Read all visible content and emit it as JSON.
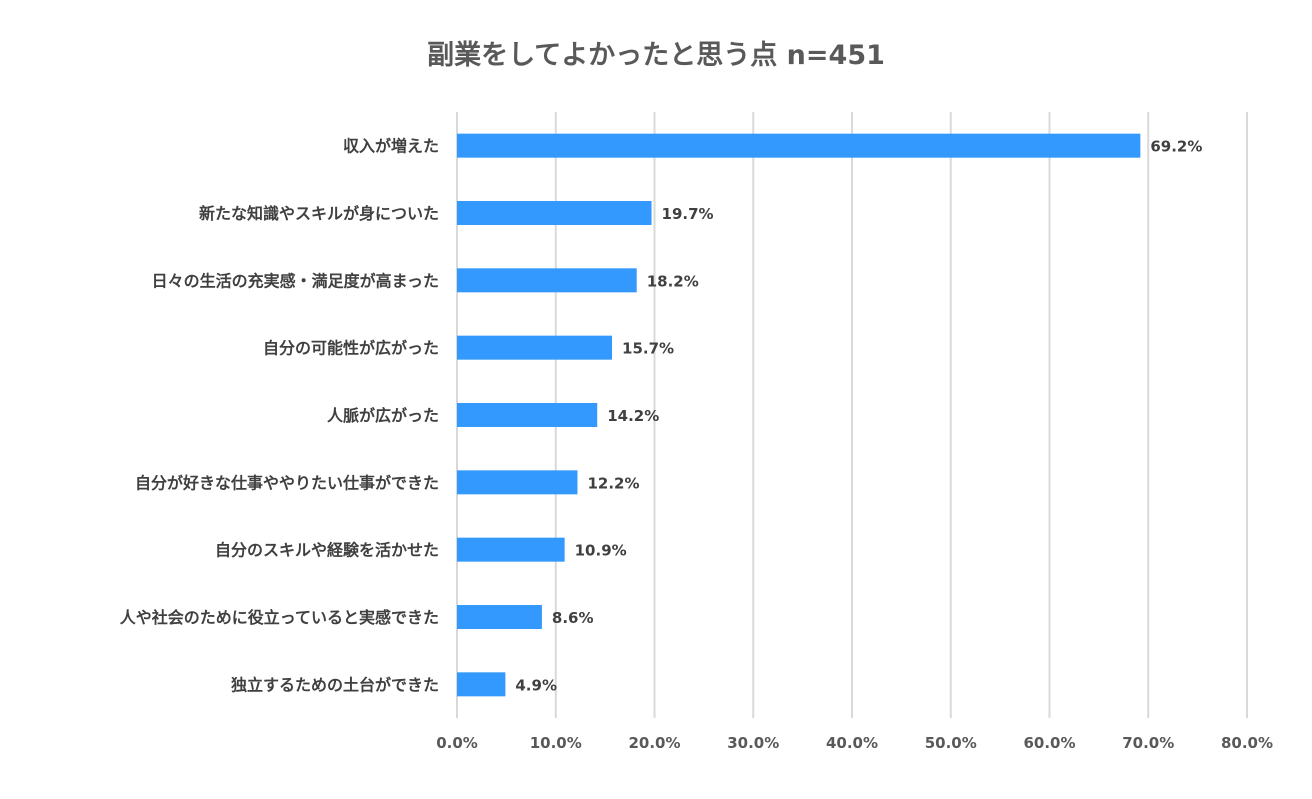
{
  "chart_data": {
    "type": "bar",
    "orientation": "horizontal",
    "title": "副業をしてよかったと思う点 n=451",
    "categories": [
      "収入が増えた",
      "新たな知識やスキルが身についた",
      "日々の生活の充実感・満足度が高まった",
      "自分の可能性が広がった",
      "人脈が広がった",
      "自分が好きな仕事ややりたい仕事ができた",
      "自分のスキルや経験を活かせた",
      "人や社会のために役立っていると実感できた",
      "独立するための土台ができた"
    ],
    "values": [
      69.2,
      19.7,
      18.2,
      15.7,
      14.2,
      12.2,
      10.9,
      8.6,
      4.9
    ],
    "value_labels": [
      "69.2%",
      "19.7%",
      "18.2%",
      "15.7%",
      "14.2%",
      "12.2%",
      "10.9%",
      "8.6%",
      "4.9%"
    ],
    "xlim": [
      0,
      80
    ],
    "x_ticks": [
      "0.0%",
      "10.0%",
      "20.0%",
      "30.0%",
      "40.0%",
      "50.0%",
      "60.0%",
      "70.0%",
      "80.0%"
    ],
    "grid": true,
    "bar_color": "#3399ff"
  }
}
